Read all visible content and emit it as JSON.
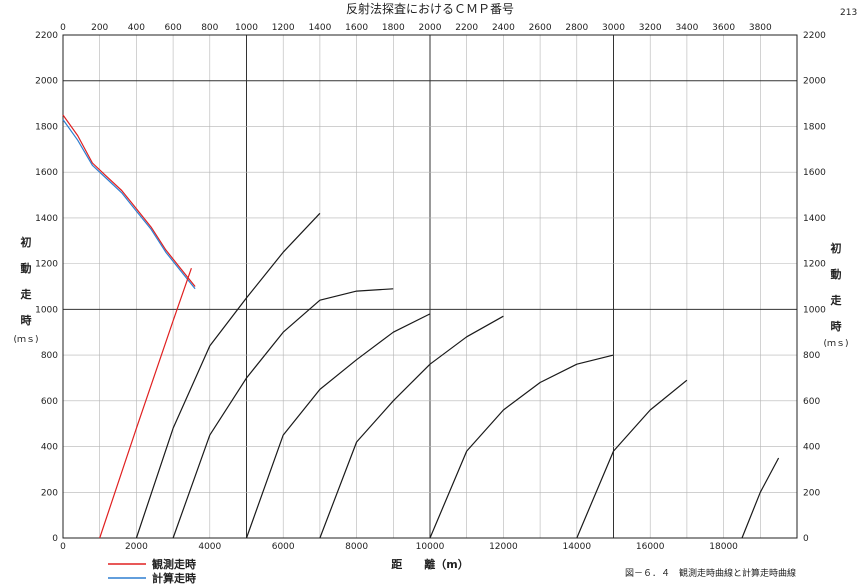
{
  "page_number": "213",
  "chart_data": {
    "type": "line",
    "title": "反射法探査におけるＣＭＰ番号",
    "xlabel": "距　　離（m）",
    "ylabel_left": [
      "初",
      "動",
      "走",
      "時",
      "(ｍｓ)"
    ],
    "ylabel_right": [
      "初",
      "動",
      "走",
      "時",
      "(ｍｓ)"
    ],
    "xlim": [
      0,
      20000
    ],
    "ylim": [
      0,
      2200
    ],
    "top_xlim": [
      0,
      4000
    ],
    "x_ticks": [
      0,
      2000,
      4000,
      6000,
      8000,
      10000,
      12000,
      14000,
      16000,
      18000
    ],
    "top_ticks": [
      0,
      200,
      400,
      600,
      800,
      1000,
      1200,
      1400,
      1600,
      1800,
      2000,
      2200,
      2400,
      2600,
      2800,
      3000,
      3200,
      3400,
      3600,
      3800
    ],
    "y_ticks": [
      0,
      200,
      400,
      600,
      800,
      1000,
      1200,
      1400,
      1600,
      1800,
      2000,
      2200
    ],
    "grid": true,
    "legend": {
      "position": "bottom-left",
      "entries": [
        {
          "name": "観測走時",
          "color": "#e02020"
        },
        {
          "name": "計算走時",
          "color": "#2f7fd0"
        }
      ]
    },
    "caption": "図－６．４　観測走時曲線と計算走時曲線",
    "series": [
      {
        "name": "観測走時",
        "shot_x": 0,
        "color": "#e02020",
        "x": [
          0,
          400,
          800,
          1200,
          1600,
          2000,
          2400,
          2800,
          3200,
          3600
        ],
        "y": [
          1850,
          1760,
          1640,
          1580,
          1520,
          1440,
          1360,
          1260,
          1180,
          1100
        ]
      },
      {
        "name": "計算走時",
        "shot_x": 0,
        "color": "#2f7fd0",
        "x": [
          0,
          400,
          800,
          1200,
          1600,
          2000,
          2400,
          2800,
          3200,
          3600
        ],
        "y": [
          1830,
          1740,
          1630,
          1570,
          1510,
          1430,
          1350,
          1250,
          1170,
          1090
        ]
      },
      {
        "name": "観測走時",
        "shot_x": 1000,
        "color": "#e02020",
        "x": [
          1000,
          2000,
          3000,
          3500
        ],
        "y": [
          0,
          480,
          950,
          1180
        ]
      },
      {
        "name": "観測走時",
        "shot_x": 2000,
        "color": "#1a1a1a",
        "x": [
          2000,
          3000,
          4000,
          5000,
          6000,
          7000
        ],
        "y": [
          0,
          480,
          840,
          1050,
          1250,
          1420
        ]
      },
      {
        "name": "観測走時",
        "shot_x": 3000,
        "color": "#1a1a1a",
        "x": [
          3000,
          4000,
          5000,
          6000,
          7000,
          8000,
          9000
        ],
        "y": [
          0,
          450,
          700,
          900,
          1040,
          1080,
          1090
        ]
      },
      {
        "name": "観測走時",
        "shot_x": 5000,
        "color": "#1a1a1a",
        "x": [
          5000,
          6000,
          7000,
          8000,
          9000,
          10000
        ],
        "y": [
          0,
          450,
          650,
          780,
          900,
          980
        ]
      },
      {
        "name": "観測走時",
        "shot_x": 7000,
        "color": "#1a1a1a",
        "x": [
          7000,
          8000,
          9000,
          10000,
          11000,
          12000
        ],
        "y": [
          0,
          420,
          600,
          760,
          880,
          970
        ]
      },
      {
        "name": "観測走時",
        "shot_x": 10000,
        "color": "#1a1a1a",
        "x": [
          10000,
          11000,
          12000,
          13000,
          14000,
          15000
        ],
        "y": [
          0,
          380,
          560,
          680,
          760,
          800
        ]
      },
      {
        "name": "観測走時",
        "shot_x": 14000,
        "color": "#1a1a1a",
        "x": [
          14000,
          15000,
          16000,
          17000
        ],
        "y": [
          0,
          380,
          560,
          690
        ]
      },
      {
        "name": "観測走時",
        "shot_x": 18500,
        "color": "#1a1a1a",
        "x": [
          18500,
          19000,
          19500
        ],
        "y": [
          0,
          200,
          350
        ]
      }
    ]
  }
}
